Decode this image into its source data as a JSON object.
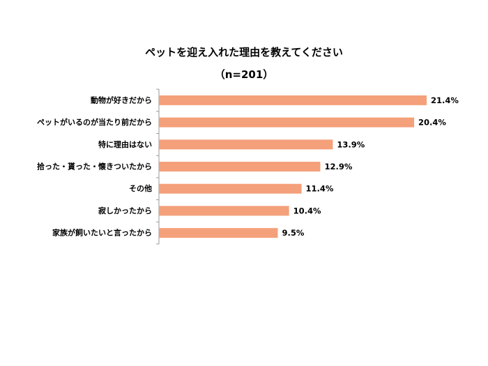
{
  "chart_data": {
    "type": "bar",
    "orientation": "horizontal",
    "title": "ペットを迎え入れた理由を教えてください",
    "subtitle": "（n=201）",
    "categories": [
      "動物が好きだから",
      "ペットがいるのが当たり前だから",
      "特に理由はない",
      "拾った・貰った・懐きついたから",
      "その他",
      "寂しかったから",
      "家族が飼いたいと言ったから"
    ],
    "values": [
      21.4,
      20.4,
      13.9,
      12.9,
      11.4,
      10.4,
      9.5
    ],
    "value_labels": [
      "21.4%",
      "20.4%",
      "13.9%",
      "12.9%",
      "11.4%",
      "10.4%",
      "9.5%"
    ],
    "unit": "%",
    "xlim": [
      0,
      22
    ],
    "xlabel": "",
    "ylabel": "",
    "grid": false,
    "bar_color": "#F4A07A"
  }
}
